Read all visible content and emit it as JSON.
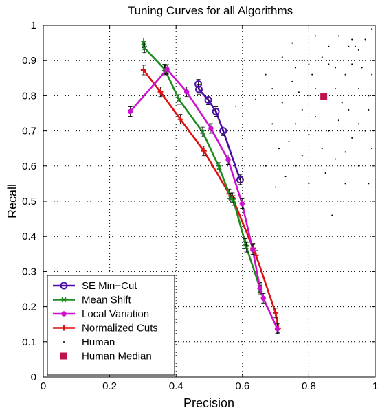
{
  "chart_data": {
    "type": "line",
    "title": "Tuning Curves for all Algorithms",
    "xlabel": "Precision",
    "ylabel": "Recall",
    "xlim": [
      0,
      1
    ],
    "ylim": [
      0,
      1
    ],
    "xticks": [
      "0",
      "0.2",
      "0.4",
      "0.6",
      "0.8",
      "1"
    ],
    "yticks": [
      "0",
      "0.1",
      "0.2",
      "0.3",
      "0.4",
      "0.5",
      "0.6",
      "0.7",
      "0.8",
      "0.9",
      "1"
    ],
    "grid": true,
    "legend_position": "bottom-left",
    "series": [
      {
        "name": "SE Min−Cut",
        "color": "#4b0fa6",
        "marker": "circle",
        "points": [
          [
            0.467,
            0.833
          ],
          [
            0.469,
            0.818
          ],
          [
            0.497,
            0.788
          ],
          [
            0.52,
            0.755
          ],
          [
            0.542,
            0.7
          ],
          [
            0.593,
            0.561
          ]
        ]
      },
      {
        "name": "Mean Shift",
        "color": "#1e8a1e",
        "marker": "x",
        "points": [
          [
            0.302,
            0.95
          ],
          [
            0.305,
            0.936
          ],
          [
            0.365,
            0.876
          ],
          [
            0.368,
            0.873
          ],
          [
            0.366,
            0.875
          ],
          [
            0.409,
            0.789
          ],
          [
            0.48,
            0.697
          ],
          [
            0.53,
            0.596
          ],
          [
            0.565,
            0.509
          ],
          [
            0.573,
            0.502
          ],
          [
            0.609,
            0.38
          ],
          [
            0.612,
            0.369
          ],
          [
            0.652,
            0.255
          ],
          [
            0.654,
            0.248
          ]
        ]
      },
      {
        "name": "Local Variation",
        "color": "#cc11cc",
        "marker": "dot",
        "points": [
          [
            0.262,
            0.755
          ],
          [
            0.373,
            0.875
          ],
          [
            0.432,
            0.811
          ],
          [
            0.505,
            0.707
          ],
          [
            0.557,
            0.618
          ],
          [
            0.599,
            0.493
          ],
          [
            0.631,
            0.362
          ],
          [
            0.653,
            0.252
          ],
          [
            0.663,
            0.224
          ],
          [
            0.705,
            0.137
          ]
        ]
      },
      {
        "name": "Normalized Cuts",
        "color": "#dd1111",
        "marker": "plus",
        "points": [
          [
            0.302,
            0.873
          ],
          [
            0.353,
            0.811
          ],
          [
            0.413,
            0.733
          ],
          [
            0.484,
            0.643
          ],
          [
            0.56,
            0.521
          ],
          [
            0.57,
            0.51
          ],
          [
            0.632,
            0.366
          ],
          [
            0.641,
            0.346
          ],
          [
            0.7,
            0.182
          ],
          [
            0.708,
            0.139
          ]
        ]
      },
      {
        "name": "Human",
        "color": "#000000",
        "marker": "point",
        "scatter": true,
        "points": [
          [
            0.92,
            0.94
          ],
          [
            0.94,
            0.94
          ],
          [
            0.95,
            0.93
          ],
          [
            0.93,
            0.96
          ],
          [
            0.97,
            0.96
          ],
          [
            0.99,
            0.99
          ],
          [
            0.89,
            0.97
          ],
          [
            0.86,
            0.94
          ],
          [
            0.78,
            0.9
          ],
          [
            0.84,
            0.91
          ],
          [
            0.86,
            0.89
          ],
          [
            0.76,
            0.88
          ],
          [
            0.93,
            0.89
          ],
          [
            0.96,
            0.88
          ],
          [
            0.8,
            0.89
          ],
          [
            0.81,
            0.86
          ],
          [
            0.88,
            0.88
          ],
          [
            0.91,
            0.86
          ],
          [
            0.75,
            0.84
          ],
          [
            0.69,
            0.82
          ],
          [
            0.77,
            0.81
          ],
          [
            0.8,
            0.8
          ],
          [
            0.82,
            0.82
          ],
          [
            0.88,
            0.82
          ],
          [
            0.95,
            0.82
          ],
          [
            0.98,
            0.8
          ],
          [
            0.72,
            0.78
          ],
          [
            0.85,
            0.79
          ],
          [
            0.9,
            0.78
          ],
          [
            0.92,
            0.76
          ],
          [
            0.78,
            0.76
          ],
          [
            0.82,
            0.74
          ],
          [
            0.76,
            0.72
          ],
          [
            0.89,
            0.73
          ],
          [
            0.95,
            0.72
          ],
          [
            0.86,
            0.7
          ],
          [
            0.8,
            0.69
          ],
          [
            0.74,
            0.67
          ],
          [
            0.93,
            0.68
          ],
          [
            0.97,
            0.7
          ],
          [
            0.71,
            0.65
          ],
          [
            0.84,
            0.65
          ],
          [
            0.78,
            0.63
          ],
          [
            0.88,
            0.62
          ],
          [
            0.91,
            0.64
          ],
          [
            0.76,
            0.6
          ],
          [
            0.85,
            0.58
          ],
          [
            0.95,
            0.6
          ],
          [
            0.73,
            0.57
          ],
          [
            0.8,
            0.55
          ],
          [
            0.91,
            0.55
          ],
          [
            0.98,
            0.55
          ],
          [
            0.77,
            0.5
          ],
          [
            0.87,
            0.46
          ],
          [
            0.64,
            0.79
          ],
          [
            0.58,
            0.77
          ],
          [
            0.69,
            0.72
          ],
          [
            0.67,
            0.6
          ],
          [
            0.7,
            0.54
          ],
          [
            0.82,
            0.97
          ],
          [
            0.75,
            0.95
          ],
          [
            0.72,
            0.91
          ],
          [
            0.67,
            0.86
          ],
          [
            0.99,
            0.86
          ],
          [
            0.98,
            0.76
          ],
          [
            0.99,
            0.65
          ]
        ]
      },
      {
        "name": "Human Median",
        "color": "#c0134e",
        "marker": "square",
        "points": [
          [
            0.845,
            0.798
          ]
        ]
      }
    ]
  }
}
